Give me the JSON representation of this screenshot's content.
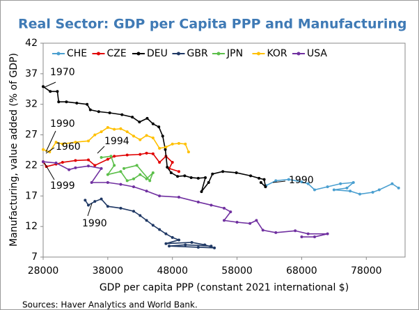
{
  "chart_data": {
    "type": "line",
    "title": "Real Sector:  GDP per Capita PPP and Manufacturing",
    "x_label": "GDP per capita PPP (constant 2021 international $)",
    "y_label": "Manufacturing, value added (% of GDP)",
    "source": "Sources: Haver Analytics and World Bank.",
    "xlim": [
      28000,
      84000
    ],
    "xticks": [
      28000,
      38000,
      48000,
      58000,
      68000,
      78000
    ],
    "ylim": [
      7,
      42
    ],
    "yticks": [
      7,
      12,
      17,
      22,
      27,
      32,
      37,
      42
    ],
    "legend": "top",
    "annotations": [
      "1970",
      "1990",
      "1960",
      "1994",
      "1999",
      "1990",
      "1990"
    ],
    "series": [
      {
        "name": "CHE",
        "color": "#4a9fd0",
        "x": [
          62500,
          64000,
          66000,
          68000,
          69000,
          70000,
          72000,
          74000,
          76000,
          75000,
          73000,
          75500,
          77000,
          79000,
          80000,
          82000,
          83000
        ],
        "values": [
          18.7,
          19.5,
          19.7,
          19.3,
          19.0,
          18.0,
          18.5,
          19.0,
          19.2,
          18.3,
          18.0,
          17.8,
          17.3,
          17.6,
          18.0,
          19.0,
          18.3
        ]
      },
      {
        "name": "CZE",
        "color": "#e00000",
        "x": [
          28000,
          28500,
          30000,
          31000,
          33000,
          35000,
          36000,
          38000,
          39000,
          41000,
          43000,
          44000,
          45000,
          46000,
          47000,
          48000,
          47500,
          49000
        ],
        "values": [
          22.6,
          21.8,
          22.2,
          22.5,
          22.8,
          22.9,
          22.0,
          23.0,
          23.5,
          23.7,
          23.8,
          24.0,
          23.9,
          22.5,
          23.5,
          22.5,
          21.5,
          21.0
        ]
      },
      {
        "name": "DEU",
        "color": "#000000",
        "x": [
          28000,
          29100,
          30200,
          30400,
          31600,
          33200,
          34800,
          35300,
          36600,
          38300,
          40200,
          41800,
          42900,
          44100,
          45000,
          45900,
          46500,
          46900,
          47200,
          47800,
          48800,
          49900,
          50900,
          52000,
          53100,
          52500,
          53600,
          54200,
          55800,
          57900,
          60100,
          61400,
          62200,
          62400,
          61700
        ],
        "values": [
          34.9,
          34.1,
          34.1,
          32.4,
          32.4,
          32.2,
          32.0,
          31.1,
          30.8,
          30.6,
          30.3,
          29.9,
          29.1,
          29.7,
          28.8,
          28.3,
          26.8,
          24.6,
          21.7,
          20.8,
          20.2,
          20.3,
          20.0,
          19.9,
          20.0,
          17.7,
          19.2,
          20.6,
          21.0,
          20.8,
          20.3,
          19.9,
          19.7,
          18.5,
          19.2
        ]
      },
      {
        "name": "GBR",
        "color": "#1f3864",
        "x": [
          34500,
          35000,
          36000,
          37000,
          38000,
          40000,
          42000,
          43000,
          44000,
          45000,
          46000,
          47000,
          48000,
          49000,
          47000,
          51000,
          53000,
          54500,
          52000,
          47500,
          50000,
          54000
        ],
        "values": [
          16.3,
          15.5,
          16.1,
          16.5,
          15.3,
          15.0,
          14.5,
          13.8,
          13.0,
          12.2,
          11.5,
          10.8,
          10.2,
          9.8,
          9.2,
          9.4,
          9.0,
          8.5,
          8.6,
          8.8,
          9.0,
          8.8
        ]
      },
      {
        "name": "JPN",
        "color": "#5cbf4a",
        "x": [
          37000,
          38500,
          39000,
          38000,
          40000,
          41000,
          42000,
          43000,
          44000,
          45000,
          44500,
          42500,
          40500
        ],
        "values": [
          23.3,
          23.5,
          22.0,
          20.5,
          21.0,
          19.5,
          19.8,
          20.5,
          19.8,
          20.8,
          19.5,
          22.0,
          21.5
        ]
      },
      {
        "name": "KOR",
        "color": "#ffc000",
        "x": [
          28000,
          29000,
          30000,
          31000,
          33000,
          35000,
          36000,
          37000,
          38000,
          39000,
          40000,
          41000,
          42000,
          43000,
          44000,
          45000,
          46000,
          47000,
          48000,
          49000,
          50000,
          50500
        ],
        "values": [
          24.6,
          24.2,
          25.8,
          25.5,
          25.8,
          26.0,
          27.0,
          27.5,
          28.2,
          27.9,
          28.0,
          27.5,
          26.8,
          26.2,
          26.9,
          26.5,
          24.8,
          25.0,
          25.5,
          25.6,
          25.5,
          24.2
        ]
      },
      {
        "name": "USA",
        "color": "#7030a0",
        "x": [
          28000,
          30000,
          32000,
          33000,
          35000,
          37000,
          35500,
          38000,
          40000,
          42000,
          44000,
          46000,
          49000,
          52000,
          54000,
          56000,
          57000,
          56000,
          58000,
          60000,
          61000,
          62000,
          64000,
          67000,
          69000,
          72000,
          70000,
          68000
        ],
        "values": [
          22.6,
          22.4,
          21.3,
          21.6,
          21.9,
          21.5,
          19.2,
          19.2,
          18.9,
          18.5,
          17.8,
          17.0,
          16.8,
          16.0,
          15.5,
          15.0,
          14.4,
          13.0,
          12.7,
          12.5,
          13.0,
          11.4,
          11.0,
          11.3,
          10.8,
          10.8,
          10.3,
          10.3
        ]
      }
    ]
  }
}
